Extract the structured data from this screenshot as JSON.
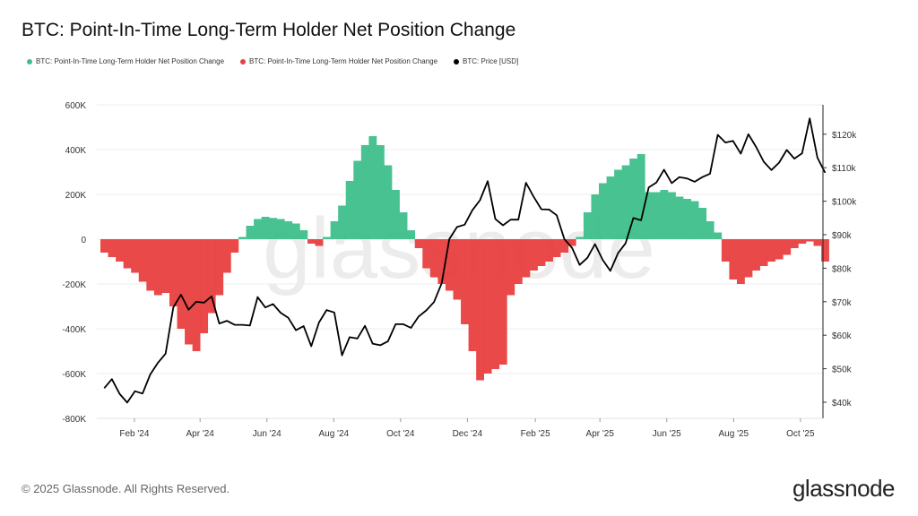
{
  "title": "BTC: Point-In-Time Long-Term Holder Net Position Change",
  "legend": [
    {
      "label": "BTC: Point-In-Time Long-Term Holder Net Position Change",
      "color": "#3fbf8b"
    },
    {
      "label": "BTC: Point-In-Time Long-Term Holder Net Position Change",
      "color": "#e8403f"
    },
    {
      "label": "BTC: Price [USD]",
      "color": "#000000"
    }
  ],
  "watermark": "glassnode",
  "footer": {
    "copyright": "© 2025 Glassnode. All Rights Reserved.",
    "logo": "glassnode"
  },
  "chart_data": {
    "type": "bar+line",
    "title": "BTC: Point-In-Time Long-Term Holder Net Position Change",
    "y_left": {
      "ticks": [
        "600K",
        "400K",
        "200K",
        "0",
        "-200K",
        "-400K",
        "-600K",
        "-800K"
      ],
      "range": [
        -800000,
        600000
      ]
    },
    "y_right": {
      "ticks": [
        "$120k",
        "$110k",
        "$100k",
        "$90k",
        "$80k",
        "$70k",
        "$60k",
        "$50k",
        "$40k"
      ],
      "range_k": [
        37.5,
        128.5
      ]
    },
    "x_ticks": [
      "Feb '24",
      "Apr '24",
      "Jun '24",
      "Aug '24",
      "Oct '24",
      "Dec '24",
      "Feb '25",
      "Apr '25",
      "Jun '25",
      "Aug '25",
      "Oct '25"
    ],
    "x_tick_dates": [
      "2024-02-01",
      "2024-04-01",
      "2024-06-01",
      "2024-08-01",
      "2024-10-01",
      "2024-12-01",
      "2025-02-01",
      "2025-04-01",
      "2025-06-01",
      "2025-08-01",
      "2025-10-01"
    ],
    "grid": true,
    "colors": {
      "positive": "#3fbf8b",
      "negative": "#e8403f",
      "price": "#000000"
    },
    "dates": [
      "2024-01-01",
      "2024-01-08",
      "2024-01-15",
      "2024-01-22",
      "2024-01-29",
      "2024-02-05",
      "2024-02-12",
      "2024-02-19",
      "2024-02-26",
      "2024-03-04",
      "2024-03-11",
      "2024-03-18",
      "2024-03-25",
      "2024-04-01",
      "2024-04-08",
      "2024-04-15",
      "2024-04-22",
      "2024-04-29",
      "2024-05-06",
      "2024-05-13",
      "2024-05-20",
      "2024-05-27",
      "2024-06-03",
      "2024-06-10",
      "2024-06-17",
      "2024-06-24",
      "2024-07-01",
      "2024-07-08",
      "2024-07-15",
      "2024-07-22",
      "2024-07-29",
      "2024-08-05",
      "2024-08-12",
      "2024-08-19",
      "2024-08-26",
      "2024-09-02",
      "2024-09-09",
      "2024-09-16",
      "2024-09-23",
      "2024-09-30",
      "2024-10-07",
      "2024-10-14",
      "2024-10-21",
      "2024-10-28",
      "2024-11-04",
      "2024-11-11",
      "2024-11-18",
      "2024-11-25",
      "2024-12-02",
      "2024-12-09",
      "2024-12-16",
      "2024-12-23",
      "2024-12-30",
      "2025-01-06",
      "2025-01-13",
      "2025-01-20",
      "2025-01-27",
      "2025-02-03",
      "2025-02-10",
      "2025-02-17",
      "2025-02-24",
      "2025-03-03",
      "2025-03-10",
      "2025-03-17",
      "2025-03-24",
      "2025-03-31",
      "2025-04-07",
      "2025-04-14",
      "2025-04-21",
      "2025-04-28",
      "2025-05-05",
      "2025-05-12",
      "2025-05-19",
      "2025-05-26",
      "2025-06-02",
      "2025-06-09",
      "2025-06-16",
      "2025-06-23",
      "2025-06-30",
      "2025-07-07",
      "2025-07-14",
      "2025-07-21",
      "2025-07-28",
      "2025-08-04",
      "2025-08-11",
      "2025-08-18",
      "2025-08-25",
      "2025-09-01",
      "2025-09-08",
      "2025-09-15",
      "2025-09-22",
      "2025-09-29",
      "2025-10-06",
      "2025-10-13",
      "2025-10-20"
    ],
    "net_position_change_k": [
      -60,
      -80,
      -100,
      -130,
      -150,
      -190,
      -230,
      -250,
      -240,
      -300,
      -400,
      -470,
      -500,
      -420,
      -330,
      -250,
      -150,
      -60,
      10,
      60,
      90,
      100,
      95,
      90,
      80,
      70,
      40,
      -20,
      -30,
      10,
      80,
      150,
      260,
      350,
      420,
      460,
      420,
      330,
      220,
      120,
      40,
      -40,
      -130,
      -170,
      -200,
      -230,
      -270,
      -380,
      -500,
      -630,
      -600,
      -580,
      -560,
      -250,
      -200,
      -170,
      -140,
      -120,
      -100,
      -80,
      -60,
      -30,
      10,
      120,
      200,
      250,
      280,
      310,
      330,
      360,
      380,
      210,
      210,
      220,
      210,
      190,
      180,
      170,
      140,
      80,
      30,
      -100,
      -180,
      -200,
      -170,
      -140,
      -120,
      -100,
      -90,
      -70,
      -40,
      -20,
      -10,
      -30,
      -100
    ],
    "price_usd_k": [
      44.2,
      46.9,
      42.5,
      39.9,
      43.3,
      42.6,
      48.3,
      51.8,
      54.5,
      68.3,
      72.1,
      67.6,
      70.0,
      69.7,
      71.6,
      63.5,
      64.3,
      63.1,
      63.1,
      62.9,
      71.4,
      68.3,
      69.3,
      66.7,
      65.2,
      61.5,
      62.7,
      56.7,
      63.8,
      67.5,
      66.8,
      54.0,
      59.4,
      59.0,
      62.8,
      57.5,
      57.0,
      58.2,
      63.3,
      63.3,
      62.2,
      65.6,
      67.4,
      69.9,
      75.5,
      88.7,
      92.3,
      93.0,
      97.3,
      100.3,
      106.0,
      94.7,
      92.8,
      94.5,
      94.5,
      105.5,
      101.3,
      97.6,
      97.5,
      95.8,
      88.7,
      86.1,
      81.0,
      83.1,
      87.2,
      82.5,
      79.2,
      84.5,
      87.5,
      95.0,
      94.3,
      104.1,
      105.6,
      109.4,
      105.4,
      107.2,
      106.8,
      105.8,
      107.2,
      108.2,
      119.8,
      117.5,
      118.0,
      114.2,
      120.0,
      116.2,
      111.8,
      109.3,
      111.5,
      115.3,
      112.7,
      114.3,
      124.7,
      113.0,
      108.5
    ]
  }
}
